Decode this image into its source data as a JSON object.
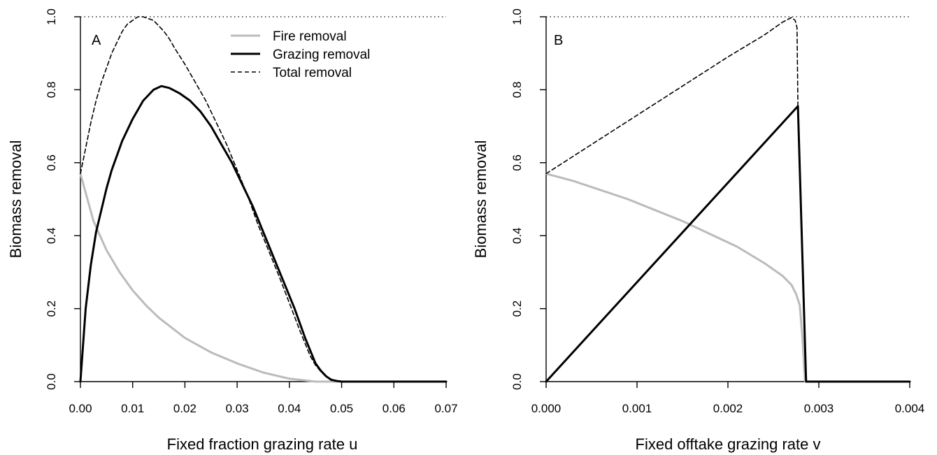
{
  "colors": {
    "fire": "#bbbbbb",
    "grazing": "#000000",
    "total": "#000000",
    "reference": "#000000"
  },
  "chart_data": [
    {
      "type": "line",
      "panel_label": "A",
      "xlabel": "Fixed fraction grazing rate u",
      "ylabel": "Biomass removal",
      "xlim": [
        0,
        0.07
      ],
      "ylim": [
        0,
        1
      ],
      "xticks": [
        "0.00",
        "0.01",
        "0.02",
        "0.03",
        "0.04",
        "0.05",
        "0.06",
        "0.07"
      ],
      "yticks": [
        "0.0",
        "0.2",
        "0.4",
        "0.6",
        "0.8",
        "1.0"
      ],
      "grid": false,
      "legend_position": "top",
      "reference_line": {
        "y": 1.0,
        "style": "dotted"
      },
      "series": [
        {
          "name": "Fire removal",
          "color": "#bbbbbb",
          "style": "solid",
          "x": [
            0,
            0.0025,
            0.005,
            0.0075,
            0.01,
            0.0125,
            0.015,
            0.02,
            0.025,
            0.03,
            0.035,
            0.04,
            0.045,
            0.05
          ],
          "y": [
            0.57,
            0.44,
            0.36,
            0.3,
            0.25,
            0.21,
            0.175,
            0.12,
            0.08,
            0.05,
            0.025,
            0.008,
            0.0,
            0.0
          ]
        },
        {
          "name": "Grazing removal",
          "color": "#000000",
          "style": "solid",
          "x": [
            0,
            0.001,
            0.002,
            0.003,
            0.004,
            0.005,
            0.006,
            0.008,
            0.01,
            0.012,
            0.014,
            0.0155,
            0.017,
            0.019,
            0.021,
            0.023,
            0.025,
            0.027,
            0.029,
            0.031,
            0.033,
            0.035,
            0.037,
            0.039,
            0.041,
            0.043,
            0.045,
            0.046,
            0.047,
            0.048,
            0.049,
            0.05,
            0.053,
            0.07
          ],
          "y": [
            0.0,
            0.2,
            0.32,
            0.41,
            0.47,
            0.53,
            0.58,
            0.66,
            0.72,
            0.77,
            0.8,
            0.81,
            0.805,
            0.79,
            0.77,
            0.74,
            0.7,
            0.65,
            0.6,
            0.54,
            0.48,
            0.41,
            0.34,
            0.27,
            0.2,
            0.12,
            0.05,
            0.03,
            0.015,
            0.005,
            0.002,
            0.0,
            0.0,
            0.0
          ]
        },
        {
          "name": "Total removal",
          "color": "#000000",
          "style": "dashed",
          "x": [
            0,
            0.001,
            0.002,
            0.003,
            0.004,
            0.005,
            0.006,
            0.007,
            0.008,
            0.009,
            0.01,
            0.011,
            0.012,
            0.013,
            0.014,
            0.015,
            0.016,
            0.017,
            0.018,
            0.02,
            0.022,
            0.024,
            0.026,
            0.028,
            0.03,
            0.032,
            0.034,
            0.036,
            0.038,
            0.04,
            0.042,
            0.044,
            0.045,
            0.046,
            0.047,
            0.048,
            0.049,
            0.05
          ],
          "y": [
            0.57,
            0.64,
            0.71,
            0.77,
            0.82,
            0.86,
            0.9,
            0.93,
            0.96,
            0.98,
            0.99,
            1.0,
            1.0,
            0.995,
            0.99,
            0.975,
            0.96,
            0.94,
            0.915,
            0.87,
            0.82,
            0.77,
            0.71,
            0.65,
            0.58,
            0.51,
            0.43,
            0.36,
            0.29,
            0.215,
            0.14,
            0.07,
            0.045,
            0.028,
            0.015,
            0.007,
            0.002,
            0.0
          ]
        }
      ]
    },
    {
      "type": "line",
      "panel_label": "B",
      "xlabel": "Fixed offtake grazing rate v",
      "ylabel": "Biomass removal",
      "xlim": [
        0,
        0.004
      ],
      "ylim": [
        0,
        1
      ],
      "xticks": [
        "0.000",
        "0.001",
        "0.002",
        "0.003",
        "0.004"
      ],
      "yticks": [
        "0.0",
        "0.2",
        "0.4",
        "0.6",
        "0.8",
        "1.0"
      ],
      "grid": false,
      "reference_line": {
        "y": 1.0,
        "style": "dotted"
      },
      "series": [
        {
          "name": "Fire removal",
          "color": "#bbbbbb",
          "style": "solid",
          "x": [
            0,
            0.0003,
            0.0006,
            0.0009,
            0.0012,
            0.0015,
            0.0018,
            0.0021,
            0.0024,
            0.0026,
            0.0027,
            0.00275,
            0.00279,
            0.00282,
            0.00284,
            0.00285
          ],
          "y": [
            0.57,
            0.55,
            0.525,
            0.5,
            0.47,
            0.44,
            0.405,
            0.37,
            0.325,
            0.29,
            0.265,
            0.24,
            0.21,
            0.12,
            0.03,
            0.0
          ]
        },
        {
          "name": "Grazing removal",
          "color": "#000000",
          "style": "solid",
          "x": [
            0,
            0.00277,
            0.00286,
            0.004
          ],
          "y": [
            0.0,
            0.755,
            0.0,
            0.0
          ]
        },
        {
          "name": "Total removal",
          "color": "#000000",
          "style": "dashed",
          "x": [
            0,
            0.0005,
            0.001,
            0.0015,
            0.002,
            0.0024,
            0.0026,
            0.0027,
            0.00274,
            0.00276,
            0.00277,
            0.00279,
            0.00284,
            0.00286
          ],
          "y": [
            0.57,
            0.65,
            0.73,
            0.81,
            0.89,
            0.95,
            0.985,
            0.998,
            0.99,
            0.97,
            0.755,
            0.6,
            0.2,
            0.0
          ]
        }
      ]
    }
  ]
}
